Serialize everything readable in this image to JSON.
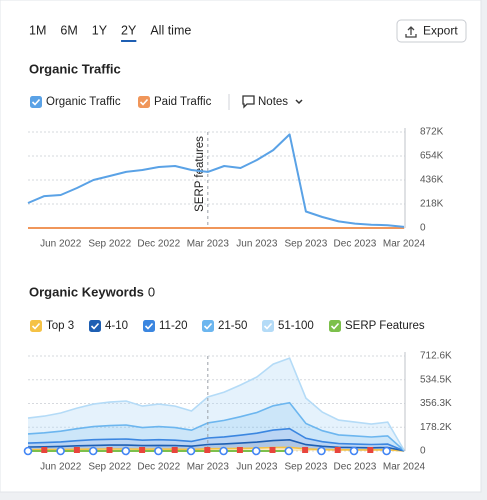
{
  "toolbar": {
    "periods": [
      "1M",
      "6M",
      "1Y",
      "2Y",
      "All time"
    ],
    "selected": "2Y",
    "export": "Export"
  },
  "chart_data": [
    {
      "type": "line",
      "title": "Organic Traffic",
      "notes_button": "Notes",
      "categories": [
        null,
        null,
        "Jun 2022",
        null,
        null,
        "Sep 2022",
        null,
        null,
        "Dec 2022",
        null,
        null,
        "Mar 2023",
        null,
        null,
        "Jun 2023",
        null,
        null,
        "Sep 2023",
        null,
        null,
        "Dec 2023",
        null,
        null,
        "Mar 2024"
      ],
      "series": [
        {
          "name": "Organic Traffic",
          "color": "#5aa2e6",
          "values": [
            227000,
            290000,
            300000,
            363000,
            436000,
            472000,
            510000,
            527000,
            554000,
            563000,
            527000,
            510000,
            563000,
            545000,
            618000,
            708000,
            850000,
            150000,
            100000,
            60000,
            40000,
            30000,
            25000,
            10000
          ]
        },
        {
          "name": "Paid Traffic",
          "color": "#f0965a",
          "values": [
            0,
            0,
            0,
            0,
            0,
            0,
            0,
            0,
            0,
            0,
            0,
            0,
            0,
            0,
            0,
            0,
            0,
            0,
            0,
            0,
            0,
            0,
            0,
            0
          ]
        }
      ],
      "ylim": [
        0,
        872000
      ],
      "yticks": [
        0,
        {
          "value": 218000,
          "label": "218K"
        },
        {
          "value": 436000,
          "label": "436K"
        },
        {
          "value": 654000,
          "label": "654K"
        },
        {
          "value": 872000,
          "label": "872K"
        }
      ],
      "grid": true,
      "annotation": {
        "text": "SERP features",
        "category": "Mar 2023"
      }
    },
    {
      "type": "stacked_area",
      "title": "Organic Keywords",
      "count": 0,
      "categories": [
        null,
        null,
        "Jun 2022",
        null,
        null,
        "Sep 2022",
        null,
        null,
        "Dec 2022",
        null,
        null,
        "Mar 2023",
        null,
        null,
        "Jun 2023",
        null,
        null,
        "Sep 2023",
        null,
        null,
        "Dec 2023",
        null,
        null,
        "Mar 2024"
      ],
      "series": [
        {
          "name": "Top 3",
          "color": "#f5c245",
          "values": [
            9900,
            10500,
            11400,
            12900,
            14100,
            14700,
            15000,
            13500,
            14100,
            13500,
            12000,
            16200,
            17700,
            19800,
            22200,
            26100,
            27900,
            15900,
            11700,
            9300,
            8700,
            8100,
            8700,
            300
          ]
        },
        {
          "name": "4-10",
          "color": "#1e5fb3",
          "values": [
            19800,
            21000,
            22800,
            25800,
            28200,
            29400,
            30000,
            27000,
            28200,
            27000,
            24000,
            32400,
            35400,
            39600,
            44400,
            52200,
            55800,
            31800,
            23400,
            18600,
            17400,
            16200,
            17400,
            600
          ]
        },
        {
          "name": "11-20",
          "color": "#3b86e0",
          "values": [
            29600,
            31400,
            34200,
            38600,
            42200,
            44000,
            45000,
            40400,
            42200,
            40400,
            36000,
            48600,
            53000,
            59400,
            66600,
            78200,
            83600,
            47600,
            35000,
            27800,
            26000,
            24200,
            26000,
            800
          ]
        },
        {
          "name": "21-50",
          "color": "#6cb6ef",
          "values": [
            69200,
            73400,
            79800,
            90200,
            98600,
            102800,
            105000,
            94400,
            98600,
            94400,
            84000,
            113400,
            123800,
            138600,
            155400,
            182600,
            195200,
            111200,
            81800,
            65000,
            60800,
            56600,
            60800,
            2000
          ]
        },
        {
          "name": "51-100",
          "color": "#b4dbf7",
          "values": [
            118500,
            125700,
            136800,
            154500,
            168900,
            176100,
            180000,
            161700,
            168900,
            161700,
            144000,
            194400,
            212100,
            237600,
            266400,
            312900,
            334500,
            190500,
            140100,
            111300,
            104100,
            97000,
            104100,
            3300
          ]
        }
      ],
      "extra_legend": {
        "name": "SERP Features",
        "color": "#7cc04b"
      },
      "ylim": [
        0,
        712600
      ],
      "yticks": [
        0,
        {
          "value": 178200,
          "label": "178.2K"
        },
        {
          "value": 356300,
          "label": "356.3K"
        },
        {
          "value": 534500,
          "label": "534.5K"
        },
        {
          "value": 712600,
          "label": "712.6K"
        }
      ],
      "grid": true,
      "annotation_category": "Mar 2023"
    }
  ]
}
